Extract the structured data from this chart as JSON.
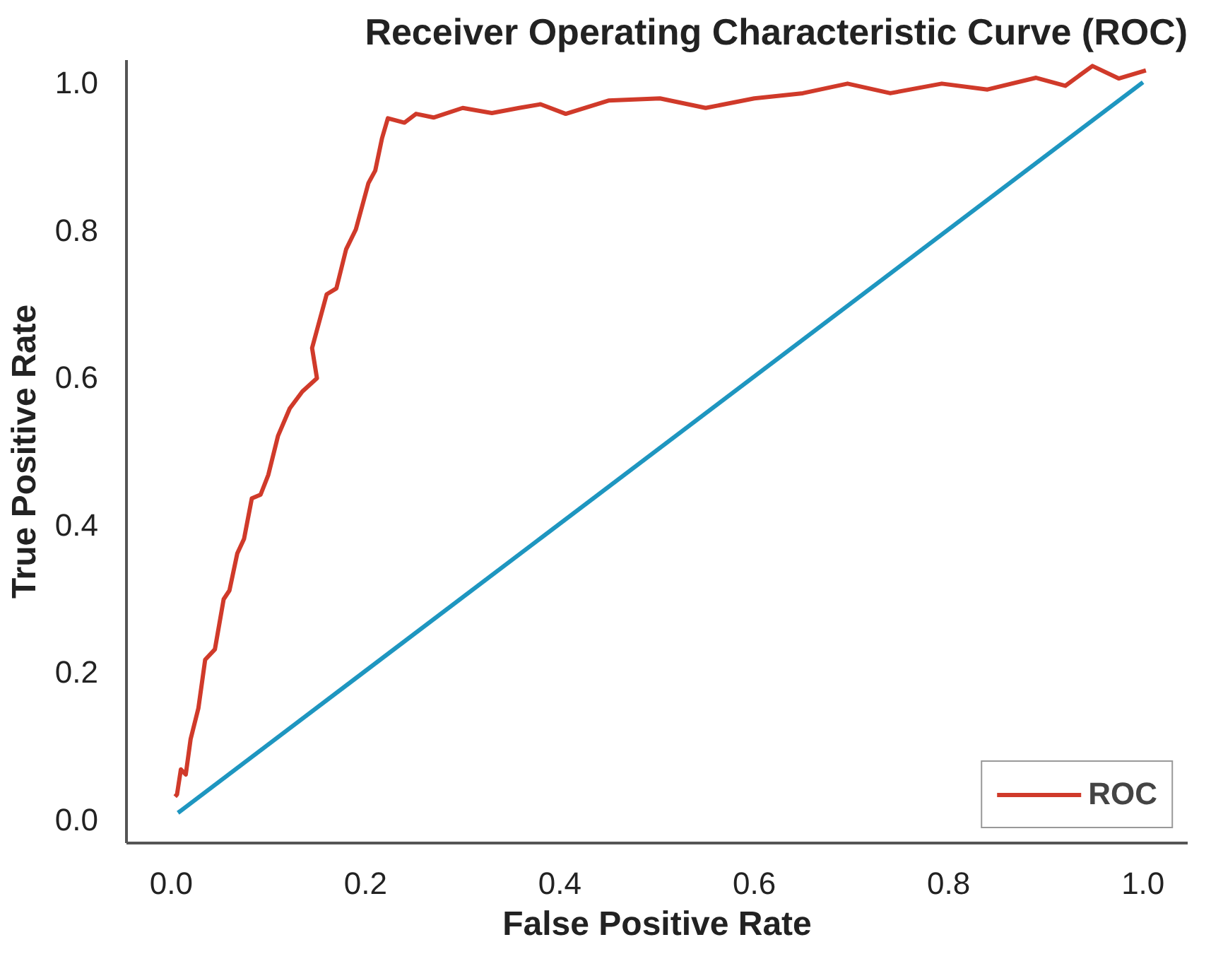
{
  "chart_data": {
    "type": "line",
    "title": "Receiver Operating Characteristic Curve (ROC)",
    "xlabel": "False Positive Rate",
    "ylabel": "True Positive Rate",
    "xlim": [
      -0.046,
      1.046
    ],
    "ylim": [
      -0.033,
      1.03
    ],
    "xticks": [
      {
        "value": 0,
        "label": "0.0"
      },
      0.2,
      0.4,
      0.6,
      0.8,
      {
        "value": 1,
        "label": "1.0"
      }
    ],
    "yticks": [
      {
        "value": 0,
        "label": "0.0"
      },
      0.2,
      0.4,
      0.6,
      0.8,
      {
        "value": 1,
        "label": "1.0"
      }
    ],
    "grid": false,
    "legend": "bottom right",
    "marker": "none",
    "line_style": "solid",
    "series": [
      {
        "name": "ROC",
        "color": "#d03a2a",
        "x": [
          0.004,
          0.006,
          0.01,
          0.015,
          0.02,
          0.028,
          0.035,
          0.045,
          0.054,
          0.06,
          0.068,
          0.075,
          0.083,
          0.092,
          0.1,
          0.11,
          0.122,
          0.135,
          0.15,
          0.145,
          0.16,
          0.17,
          0.18,
          0.19,
          0.203,
          0.21,
          0.217,
          0.223,
          0.24,
          0.252,
          0.27,
          0.3,
          0.33,
          0.358,
          0.38,
          0.406,
          0.45,
          0.503,
          0.55,
          0.6,
          0.65,
          0.696,
          0.74,
          0.793,
          0.84,
          0.89,
          0.92,
          0.948,
          0.975,
          1.003
        ],
        "values": [
          0.03,
          0.033,
          0.067,
          0.06,
          0.108,
          0.15,
          0.216,
          0.23,
          0.298,
          0.31,
          0.36,
          0.38,
          0.435,
          0.44,
          0.467,
          0.52,
          0.557,
          0.58,
          0.598,
          0.639,
          0.712,
          0.72,
          0.773,
          0.8,
          0.863,
          0.88,
          0.924,
          0.951,
          0.945,
          0.957,
          0.952,
          0.965,
          0.958,
          0.965,
          0.97,
          0.957,
          0.975,
          0.978,
          0.965,
          0.978,
          0.985,
          0.998,
          0.985,
          0.998,
          0.99,
          1.006,
          0.995,
          1.022,
          1.005,
          1.016
        ]
      },
      {
        "color": "#1e96c0",
        "x": [
          0.007,
          1.0
        ],
        "values": [
          0.008,
          1.0
        ]
      }
    ]
  }
}
